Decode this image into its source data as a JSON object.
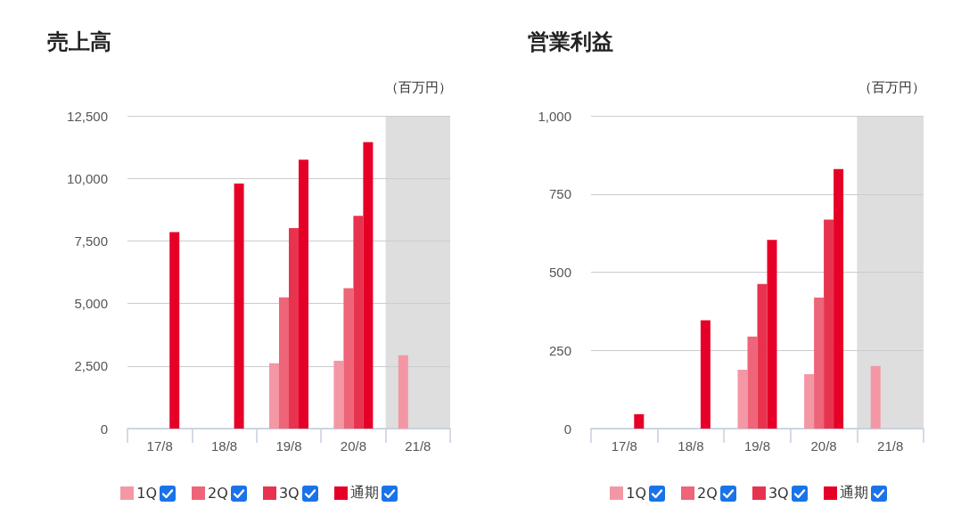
{
  "chart_data": [
    {
      "type": "bar",
      "title": "売上高",
      "ylabel": "（百万円）",
      "categories": [
        "17/8",
        "18/8",
        "19/8",
        "20/8",
        "21/8"
      ],
      "series": [
        {
          "name": "1Q",
          "color": "#f497a4",
          "values": [
            null,
            null,
            2610,
            2710,
            2930
          ]
        },
        {
          "name": "2Q",
          "color": "#ee6478",
          "values": [
            null,
            null,
            5240,
            5610,
            null
          ]
        },
        {
          "name": "3Q",
          "color": "#e8334f",
          "values": [
            null,
            null,
            8010,
            8500,
            null
          ]
        },
        {
          "name": "通期",
          "color": "#e60027",
          "values": [
            7850,
            9790,
            10750,
            11450,
            null
          ]
        }
      ],
      "ylim": [
        0,
        12500
      ],
      "yticks": [
        0,
        {
          "value": 2500,
          "label": "2,500"
        },
        {
          "value": 5000,
          "label": "5,000"
        },
        {
          "value": 7500,
          "label": "7,500"
        },
        {
          "value": 10000,
          "label": "10,000"
        },
        {
          "value": 12500,
          "label": "12,500"
        }
      ],
      "grid": "y",
      "legend": "bottom",
      "bands": [
        {
          "axis": "x",
          "from": "21/8",
          "to": "21/8",
          "color": "#dedede"
        }
      ]
    },
    {
      "type": "bar",
      "title": "営業利益",
      "ylabel": "（百万円）",
      "categories": [
        "17/8",
        "18/8",
        "19/8",
        "20/8",
        "21/8"
      ],
      "series": [
        {
          "name": "1Q",
          "color": "#f497a4",
          "values": [
            null,
            null,
            188,
            174,
            200
          ]
        },
        {
          "name": "2Q",
          "color": "#ee6478",
          "values": [
            null,
            null,
            294,
            419,
            null
          ]
        },
        {
          "name": "3Q",
          "color": "#e8334f",
          "values": [
            null,
            null,
            462,
            668,
            null
          ]
        },
        {
          "name": "通期",
          "color": "#e60027",
          "values": [
            46,
            346,
            603,
            830,
            null
          ]
        }
      ],
      "ylim": [
        0,
        1000
      ],
      "yticks": [
        0,
        250,
        500,
        750,
        {
          "value": 1000,
          "label": "1,000"
        }
      ],
      "grid": "y",
      "legend": "bottom",
      "bands": [
        {
          "axis": "x",
          "from": "21/8",
          "to": "21/8",
          "color": "#dedede"
        }
      ]
    }
  ]
}
